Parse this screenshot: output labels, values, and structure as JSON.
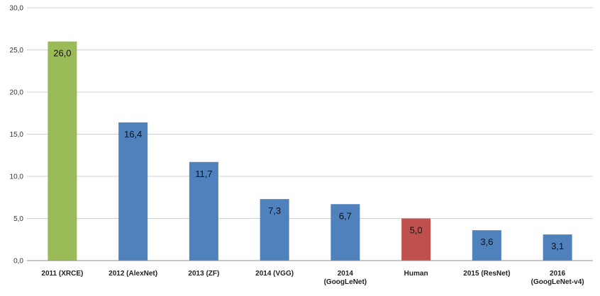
{
  "chart_data": {
    "type": "bar",
    "title": "",
    "xlabel": "",
    "ylabel": "",
    "ylim": [
      0,
      30
    ],
    "yticks": [
      "0,0",
      "5,0",
      "10,0",
      "15,0",
      "20,0",
      "25,0",
      "30,0"
    ],
    "grid": true,
    "legend": "none",
    "categories": [
      [
        "2011 (XRCE)"
      ],
      [
        "2012 (AlexNet)"
      ],
      [
        "2013 (ZF)"
      ],
      [
        "2014 (VGG)"
      ],
      [
        "2014",
        "(GoogLeNet)"
      ],
      [
        "Human"
      ],
      [
        "2015 (ResNet)"
      ],
      [
        "2016",
        "(GoogLeNet-v4)"
      ]
    ],
    "values": [
      26.0,
      16.4,
      11.7,
      7.3,
      6.7,
      5.0,
      3.6,
      3.1
    ],
    "value_labels": [
      "26,0",
      "16,4",
      "11,7",
      "7,3",
      "6,7",
      "5,0",
      "3,6",
      "3,1"
    ],
    "colors": [
      "#9bbb59",
      "#4f81bd",
      "#4f81bd",
      "#4f81bd",
      "#4f81bd",
      "#c0504d",
      "#4f81bd",
      "#4f81bd"
    ],
    "gridline_color": "#d0d0d0",
    "axis_color": "#8c8c8c"
  }
}
